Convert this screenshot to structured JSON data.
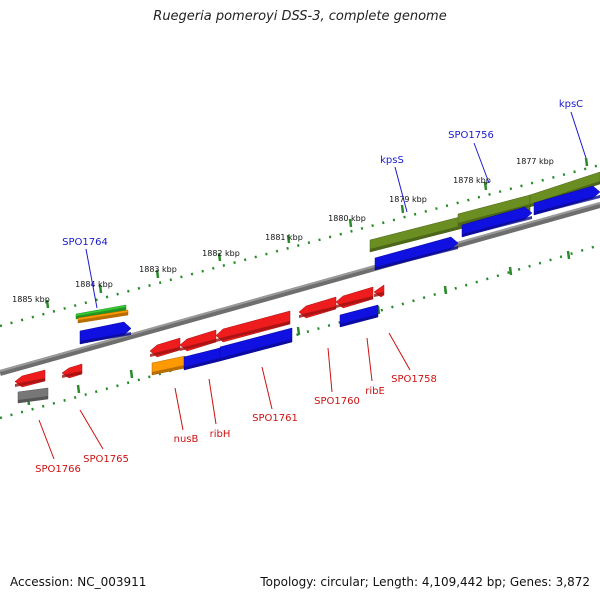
{
  "title": "Ruegeria pomeroyi DSS-3, complete genome",
  "footer": {
    "accession": "Accession: NC_003911",
    "summary": "Topology: circular; Length: 4,109,442 bp; Genes: 3,872"
  },
  "ticks": [
    {
      "label": "1877 kbp"
    },
    {
      "label": "1878 kbp"
    },
    {
      "label": "1879 kbp"
    },
    {
      "label": "1880 kbp"
    },
    {
      "label": "1881 kbp"
    },
    {
      "label": "1882 kbp"
    },
    {
      "label": "1883 kbp"
    },
    {
      "label": "1884 kbp"
    },
    {
      "label": "1885 kbp"
    }
  ],
  "gene_labels": {
    "forward": [
      "kpsC",
      "SPO1756",
      "kpsS",
      "SPO1764"
    ],
    "reverse": [
      "SPO1758",
      "ribE",
      "SPO1760",
      "SPO1761",
      "ribH",
      "nusB",
      "SPO1765",
      "SPO1766"
    ]
  },
  "colors": {
    "red": "#ee1c1c",
    "blue": "#1010e0",
    "olive": "#6b8e23",
    "green": "#33cc33",
    "orange": "#ff9900",
    "gray": "#777777",
    "backbone": "#808080",
    "tick": "#2a8a2a",
    "forward_label": "#1a1acc",
    "reverse_label": "#cc1111"
  }
}
